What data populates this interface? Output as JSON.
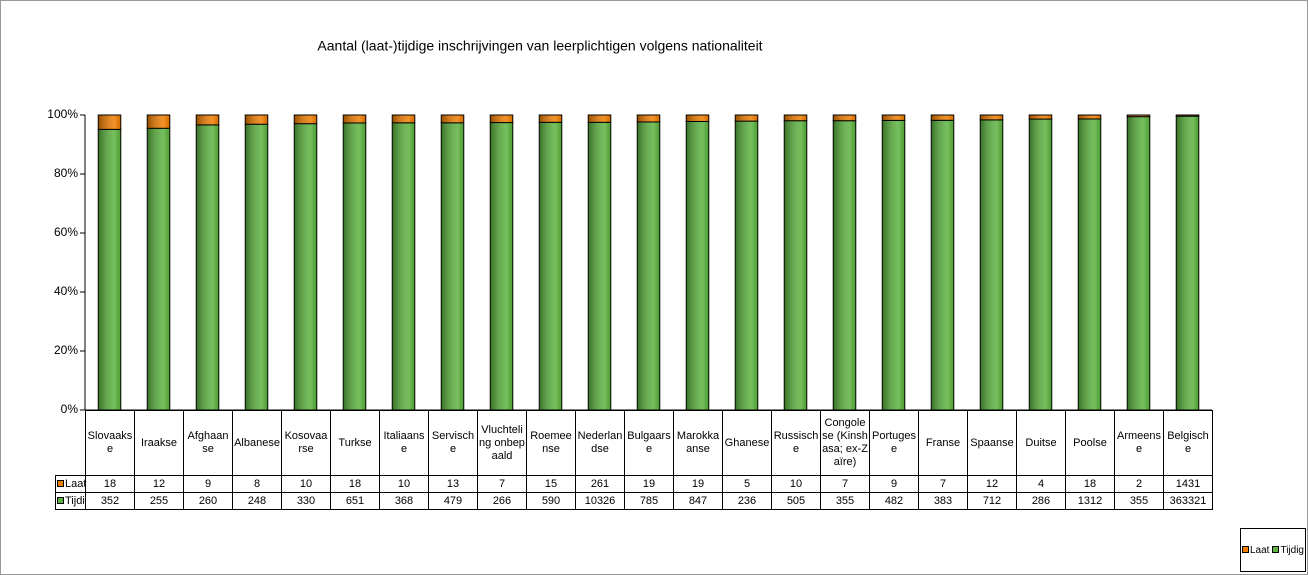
{
  "chart_data": {
    "type": "bar",
    "stacking": "percent",
    "title": "Aantal (laat-)tijdige inschrijvingen van leerplichtigen volgens nationaliteit",
    "categories": [
      "Slovaakse",
      "Iraakse",
      "Afghaanse",
      "Albanese",
      "Kosovaarse",
      "Turkse",
      "Italiaanse",
      "Servische",
      "Vluchteling onbepaald",
      "Roemeense",
      "Nederlandse",
      "Bulgaarse",
      "Marokkaanse",
      "Ghanese",
      "Russische",
      "Congolese (Kinshasa; ex-Zaïre)",
      "Portugese",
      "Franse",
      "Spaanse",
      "Duitse",
      "Poolse",
      "Armeense",
      "Belgische"
    ],
    "series": [
      {
        "name": "Laat",
        "color": "#f07d00",
        "values": [
          18,
          12,
          9,
          8,
          10,
          18,
          10,
          13,
          7,
          15,
          261,
          19,
          19,
          5,
          10,
          7,
          9,
          7,
          12,
          4,
          18,
          2,
          1431
        ]
      },
      {
        "name": "Tijdig",
        "color": "#5cb33f",
        "values": [
          352,
          255,
          260,
          248,
          330,
          651,
          368,
          479,
          266,
          590,
          10326,
          785,
          847,
          236,
          505,
          355,
          482,
          383,
          712,
          286,
          1312,
          355,
          363321
        ]
      }
    ],
    "ylim": [
      0,
      100
    ],
    "yticks": [
      {
        "value": 0,
        "label": "0%"
      },
      {
        "value": 20,
        "label": "20%"
      },
      {
        "value": 40,
        "label": "40%"
      },
      {
        "value": 60,
        "label": "60%"
      },
      {
        "value": 80,
        "label": "80%"
      },
      {
        "value": 100,
        "label": "100%"
      }
    ],
    "grid": false
  }
}
